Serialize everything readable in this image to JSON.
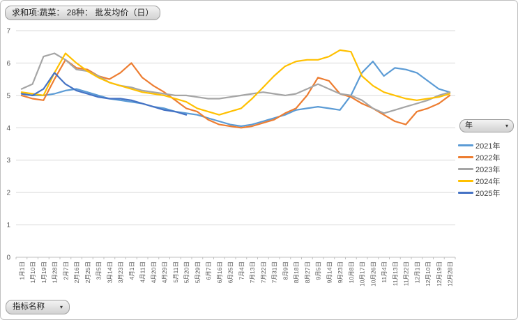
{
  "window": {
    "background": "#ffffff",
    "border_color": "#bfbfbf"
  },
  "field_button": {
    "label": "求和项:蔬菜： 28种： 批发均价（日）"
  },
  "legend_button": {
    "label": "年",
    "arrow_icon": "dropdown-arrow"
  },
  "filter_button": {
    "label": "指标名称",
    "arrow_icon": "dropdown-arrow"
  },
  "axis_colors": {
    "gridline": "#d9d9d9",
    "axis_line": "#bfbfbf",
    "tick_label": "#595959"
  },
  "chart_data": {
    "type": "line",
    "title": "求和项:蔬菜： 28种： 批发均价（日）",
    "xlabel": "",
    "ylabel": "",
    "ylim": [
      0,
      7
    ],
    "yticks": [
      0,
      1,
      2,
      3,
      4,
      5,
      6,
      7
    ],
    "grid": true,
    "legend_position": "right",
    "categories": [
      "1月1日",
      "1月10日",
      "1月19日",
      "1月28日",
      "2月7日",
      "2月16日",
      "2月25日",
      "3月5日",
      "3月14日",
      "3月23日",
      "4月1日",
      "4月11日",
      "4月20日",
      "4月29日",
      "5月11日",
      "5月20日",
      "5月29日",
      "6月7日",
      "6月16日",
      "6月25日",
      "7月4日",
      "7月13日",
      "7月22日",
      "7月31日",
      "8月9日",
      "8月18日",
      "8月27日",
      "9月5日",
      "9月14日",
      "9月23日",
      "10月8日",
      "10月17日",
      "10月26日",
      "11月4日",
      "11月13日",
      "11月22日",
      "12月1日",
      "12月10日",
      "12月19日",
      "12月28日"
    ],
    "series": [
      {
        "name": "2021年",
        "color": "#5B9BD5",
        "values": [
          5.05,
          5.0,
          5.0,
          5.05,
          5.15,
          5.2,
          5.1,
          5.0,
          4.9,
          4.85,
          4.8,
          4.75,
          4.65,
          4.6,
          4.5,
          4.45,
          4.4,
          4.3,
          4.2,
          4.1,
          4.05,
          4.1,
          4.2,
          4.3,
          4.4,
          4.55,
          4.6,
          4.65,
          4.6,
          4.55,
          5.0,
          5.7,
          6.05,
          5.6,
          5.85,
          5.8,
          5.7,
          5.45,
          5.2,
          5.1
        ]
      },
      {
        "name": "2022年",
        "color": "#ED7D31",
        "values": [
          5.0,
          4.9,
          4.85,
          5.5,
          6.1,
          5.85,
          5.8,
          5.6,
          5.5,
          5.7,
          6.0,
          5.55,
          5.3,
          5.1,
          4.85,
          4.6,
          4.5,
          4.25,
          4.1,
          4.05,
          4.0,
          4.05,
          4.15,
          4.25,
          4.45,
          4.6,
          5.0,
          5.55,
          5.45,
          5.05,
          4.95,
          4.75,
          4.6,
          4.4,
          4.2,
          4.1,
          4.5,
          4.6,
          4.75,
          5.0
        ]
      },
      {
        "name": "2023年",
        "color": "#A5A5A5",
        "values": [
          5.2,
          5.35,
          6.2,
          6.3,
          6.1,
          5.8,
          5.75,
          5.6,
          5.4,
          5.3,
          5.25,
          5.15,
          5.1,
          5.05,
          5.0,
          5.0,
          4.95,
          4.9,
          4.9,
          4.95,
          5.0,
          5.05,
          5.1,
          5.05,
          5.0,
          5.05,
          5.2,
          5.35,
          5.2,
          5.05,
          5.0,
          4.85,
          4.6,
          4.45,
          4.55,
          4.65,
          4.75,
          4.85,
          5.0,
          5.1
        ]
      },
      {
        "name": "2024年",
        "color": "#FFC000",
        "values": [
          5.1,
          5.05,
          5.0,
          5.7,
          6.3,
          6.0,
          5.75,
          5.55,
          5.4,
          5.3,
          5.2,
          5.1,
          5.05,
          5.0,
          4.9,
          4.8,
          4.6,
          4.5,
          4.4,
          4.5,
          4.6,
          4.9,
          5.25,
          5.6,
          5.9,
          6.05,
          6.1,
          6.1,
          6.2,
          6.4,
          6.35,
          5.6,
          5.3,
          5.1,
          5.0,
          4.9,
          4.85,
          4.9,
          4.95,
          5.05
        ]
      },
      {
        "name": "2025年",
        "color": "#4472C4",
        "values": [
          5.05,
          5.0,
          5.2,
          5.7,
          5.35,
          5.15,
          5.05,
          4.95,
          4.9,
          4.9,
          4.85,
          4.75,
          4.65,
          4.55,
          4.5,
          4.4
        ]
      }
    ]
  }
}
